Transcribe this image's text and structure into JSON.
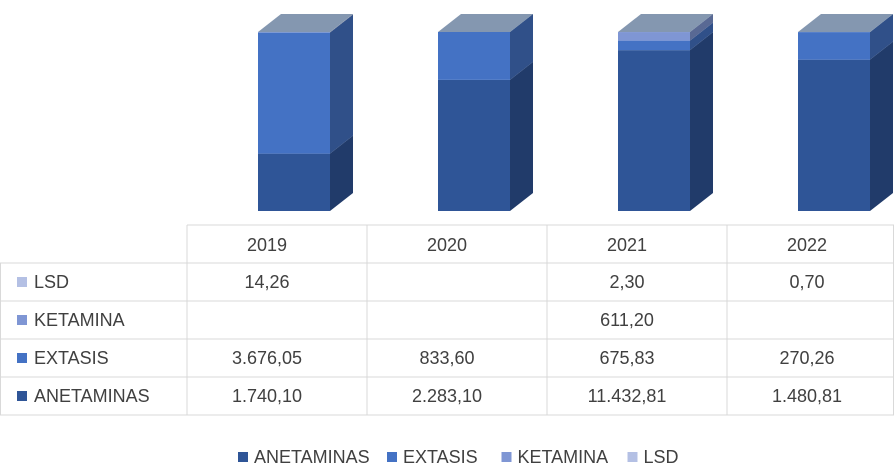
{
  "chart_data": {
    "type": "bar",
    "stacking": "percent",
    "categories": [
      "2019",
      "2020",
      "2021",
      "2022"
    ],
    "series": [
      {
        "name": "ANETAMINAS",
        "color": "#2f5597",
        "values": [
          1740.1,
          2283.1,
          11432.81,
          1480.81
        ],
        "value_labels": [
          "1.740,10",
          "2.283,10",
          "11.432,81",
          "1.480,81"
        ]
      },
      {
        "name": "EXTASIS",
        "color": "#4472c4",
        "values": [
          3676.05,
          833.6,
          675.83,
          270.26
        ],
        "value_labels": [
          "3.676,05",
          "833,60",
          "675,83",
          "270,26"
        ]
      },
      {
        "name": "KETAMINA",
        "color": "#7f96d4",
        "values": [
          null,
          null,
          611.2,
          null
        ],
        "value_labels": [
          null,
          null,
          "611,20",
          null
        ]
      },
      {
        "name": "LSD",
        "color": "#b4c0e4",
        "values": [
          14.26,
          null,
          2.3,
          0.7
        ],
        "value_labels": [
          "14,26",
          null,
          "2,30",
          "0,70"
        ]
      }
    ],
    "data_table": true,
    "legend": "bottom"
  }
}
